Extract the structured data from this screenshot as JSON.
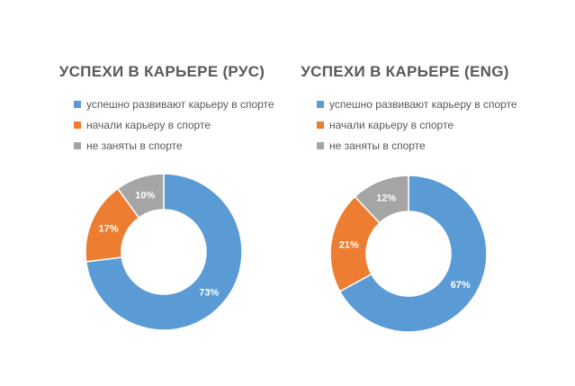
{
  "colors": {
    "series": [
      "#5B9BD5",
      "#ED7D31",
      "#A5A5A5"
    ]
  },
  "chart_data": [
    {
      "type": "pie",
      "title": "УСПЕХИ В КАРЬЕРЕ (РУС)",
      "legend_position": "top",
      "categories": [
        "успешно развивают карьеру в спорте",
        "начали карьеру в спорте",
        "не заняты в спорте"
      ],
      "values": [
        73,
        17,
        10
      ],
      "labels": [
        "73%",
        "17%",
        "10%"
      ]
    },
    {
      "type": "pie",
      "title": "УСПЕХИ В КАРЬЕРЕ (ENG)",
      "legend_position": "top",
      "categories": [
        "успешно развивают карьеру в спорте",
        "начали карьеру в спорте",
        "не заняты в спорте"
      ],
      "values": [
        67,
        21,
        12
      ],
      "labels": [
        "67%",
        "21%",
        "12%"
      ]
    }
  ]
}
